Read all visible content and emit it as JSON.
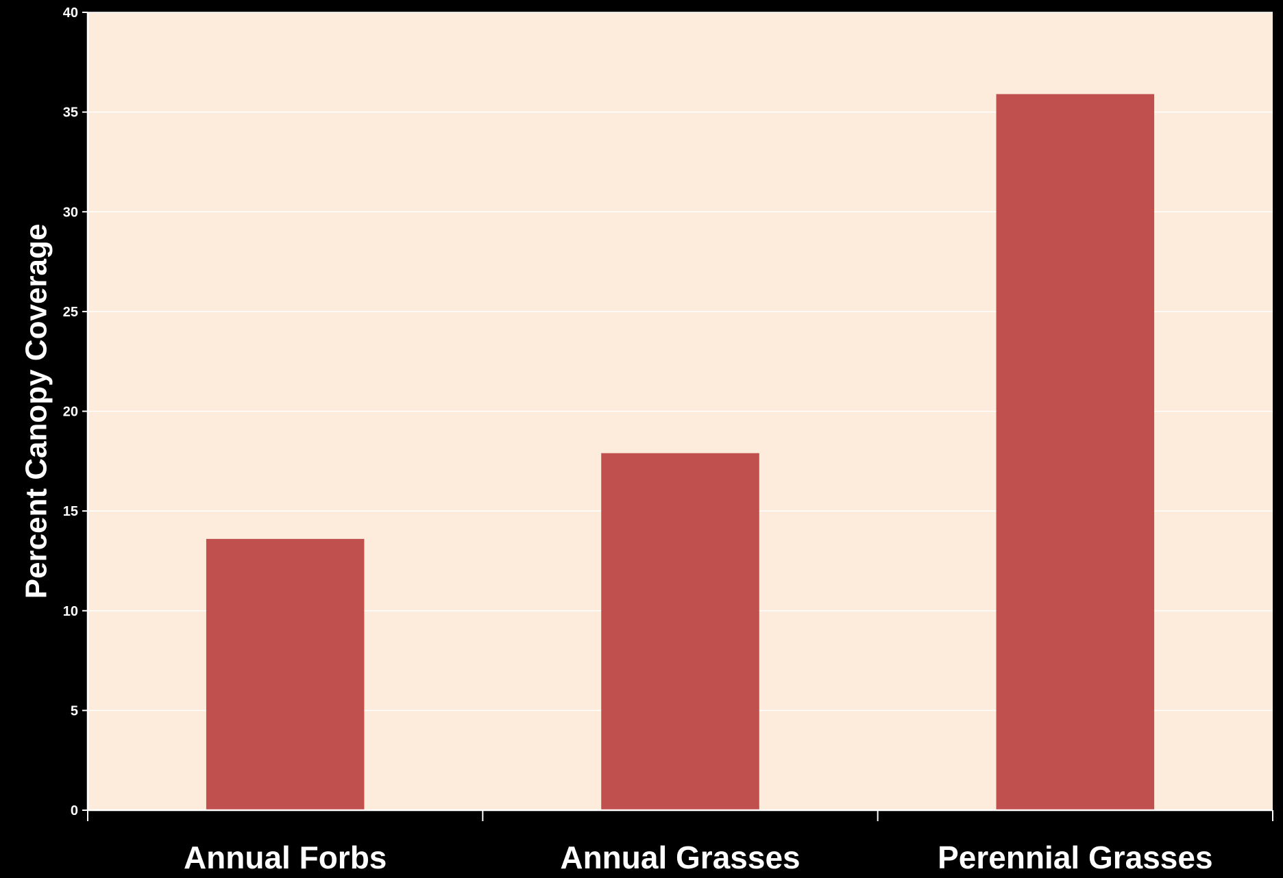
{
  "colors": {
    "background": "#000000",
    "plot_area": "#FDEBDB",
    "bar": "#C0504D",
    "gridline": "#FFFFFF",
    "axis": "#FFFFFF",
    "text": "#FFFFFF"
  },
  "chart_data": {
    "type": "bar",
    "title": "",
    "xlabel": "",
    "ylabel": "Percent Canopy Coverage",
    "categories": [
      "Annual Forbs",
      "Annual Grasses",
      "Perennial Grasses"
    ],
    "values": [
      13.6,
      17.9,
      35.9
    ],
    "ylim": [
      0,
      40
    ],
    "yticks": [
      0,
      5,
      10,
      15,
      20,
      25,
      30,
      35,
      40
    ],
    "ytick_labels": [
      "0",
      "5",
      "10",
      "15",
      "20",
      "25",
      "30",
      "35",
      "40"
    ],
    "grid": true,
    "legend": "none"
  }
}
